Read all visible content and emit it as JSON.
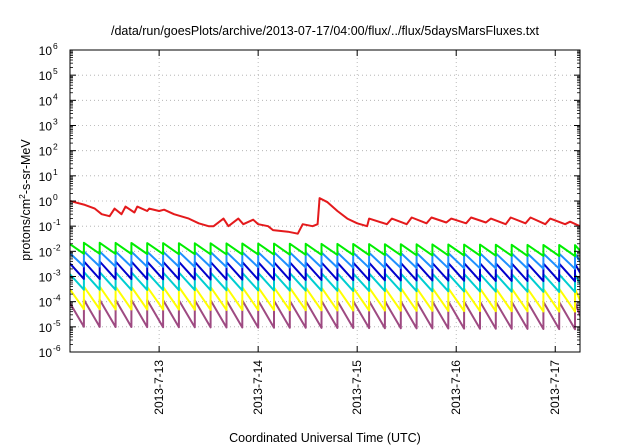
{
  "chart_data": {
    "type": "line",
    "title": "/data/run/goesPlots/archive/2013-07-17/04:00/flux/../flux/5daysMarsFluxes.txt",
    "xlabel": "Coordinated Universal Time (UTC)",
    "ylabel": "protons/cm²-s-sr-MeV",
    "ylabel_parts": {
      "before": "protons/cm",
      "sup": "2",
      "after": "-s-sr-MeV"
    },
    "yscale": "log",
    "ylim_exponents": [
      -6,
      6
    ],
    "y_tick_labels": [
      {
        "base": "10",
        "exp": "-6"
      },
      {
        "base": "10",
        "exp": "-5"
      },
      {
        "base": "10",
        "exp": "-4"
      },
      {
        "base": "10",
        "exp": "-3"
      },
      {
        "base": "10",
        "exp": "-2"
      },
      {
        "base": "10",
        "exp": "-1"
      },
      {
        "base": "10",
        "exp": "0"
      },
      {
        "base": "10",
        "exp": "1"
      },
      {
        "base": "10",
        "exp": "2"
      },
      {
        "base": "10",
        "exp": "3"
      },
      {
        "base": "10",
        "exp": "4"
      },
      {
        "base": "10",
        "exp": "5"
      },
      {
        "base": "10",
        "exp": "6"
      }
    ],
    "xlim_days": [
      12.1,
      17.25
    ],
    "x_ticks": [
      {
        "day": 13,
        "label": "2013-7-13"
      },
      {
        "day": 14,
        "label": "2013-7-14"
      },
      {
        "day": 15,
        "label": "2013-7-15"
      },
      {
        "day": 16,
        "label": "2013-7-16"
      },
      {
        "day": 17,
        "label": "2013-7-17"
      }
    ],
    "grid": true,
    "series": [
      {
        "color": "#e41a1c",
        "x": [
          12.1,
          12.25,
          12.35,
          12.42,
          12.5,
          12.55,
          12.62,
          12.66,
          12.75,
          12.78,
          12.88,
          12.9,
          13.0,
          13.05,
          13.15,
          13.3,
          13.4,
          13.5,
          13.55,
          13.65,
          13.7,
          13.8,
          13.85,
          13.95,
          14.0,
          14.1,
          14.15,
          14.3,
          14.4,
          14.45,
          14.55,
          14.6,
          14.62,
          14.7,
          14.8,
          14.9,
          15.0,
          15.1,
          15.12,
          15.3,
          15.35,
          15.5,
          15.55,
          15.7,
          15.75,
          15.9,
          15.95,
          16.1,
          16.15,
          16.3,
          16.35,
          16.5,
          16.55,
          16.7,
          16.75,
          16.9,
          16.95,
          17.1,
          17.15,
          17.25
        ],
        "y": [
          1.0,
          0.7,
          0.5,
          0.3,
          0.25,
          0.5,
          0.3,
          0.6,
          0.35,
          0.6,
          0.4,
          0.5,
          0.4,
          0.45,
          0.3,
          0.2,
          0.13,
          0.1,
          0.1,
          0.2,
          0.1,
          0.2,
          0.12,
          0.18,
          0.12,
          0.1,
          0.07,
          0.06,
          0.05,
          0.12,
          0.1,
          0.12,
          1.3,
          0.9,
          0.4,
          0.2,
          0.13,
          0.1,
          0.2,
          0.12,
          0.2,
          0.12,
          0.22,
          0.13,
          0.22,
          0.14,
          0.2,
          0.13,
          0.22,
          0.14,
          0.2,
          0.12,
          0.22,
          0.13,
          0.22,
          0.12,
          0.2,
          0.12,
          0.15,
          0.1
        ]
      },
      {
        "color": "#00ee00",
        "period": 0.16,
        "peak": 0.022,
        "trough": 0.008,
        "trend": -0.4
      },
      {
        "color": "#1e90ff",
        "period": 0.16,
        "peak": 0.01,
        "trough": 0.0025,
        "trend": -0.4
      },
      {
        "color": "#0000cd",
        "period": 0.16,
        "peak": 0.004,
        "trough": 0.0008,
        "trend": -0.4
      },
      {
        "color": "#00ced1",
        "period": 0.16,
        "peak": 0.0015,
        "trough": 0.0003,
        "trend": -0.4
      },
      {
        "color": "#ffff00",
        "period": 0.16,
        "peak": 0.0004,
        "trough": 5e-05,
        "trend": -0.4
      },
      {
        "color": "#9e4a82",
        "period": 0.16,
        "peak": 0.00012,
        "trough": 1e-05,
        "trend": -0.4
      }
    ]
  }
}
